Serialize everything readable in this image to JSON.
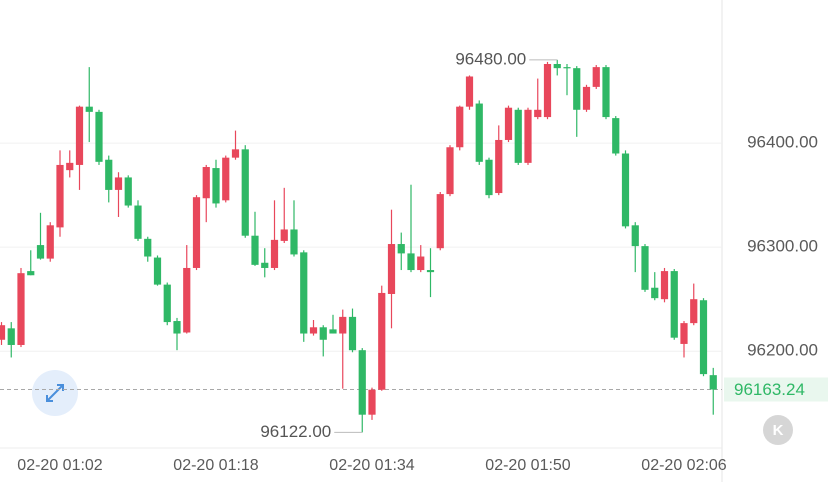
{
  "chart_data": {
    "type": "candlestick",
    "categories": [
      null,
      null,
      null,
      null,
      null,
      null,
      "02-20 01:02",
      null,
      null,
      null,
      null,
      null,
      null,
      null,
      null,
      null,
      null,
      null,
      null,
      null,
      null,
      null,
      "02-20 01:18",
      null,
      null,
      null,
      null,
      null,
      null,
      null,
      null,
      null,
      null,
      null,
      null,
      null,
      null,
      null,
      "02-20 01:34",
      null,
      null,
      null,
      null,
      null,
      null,
      null,
      null,
      null,
      null,
      null,
      null,
      null,
      null,
      null,
      "02-20 01:50",
      null,
      null,
      null,
      null,
      null,
      null,
      null,
      null,
      null,
      null,
      null,
      null,
      null,
      null,
      null,
      "02-20 02:06",
      null,
      null,
      null
    ],
    "open": [
      96211,
      96222,
      96206,
      96277,
      96302,
      96289,
      96319,
      96374,
      96379,
      96435,
      96430,
      96384,
      96355,
      96367,
      96340,
      96308,
      96290,
      96264,
      96229,
      96218,
      96280,
      96347,
      96376,
      96345,
      96386,
      96394,
      96311,
      96285,
      96280,
      96306,
      96317,
      96295,
      96217,
      96223,
      96221,
      96217,
      96233,
      96201,
      96139,
      96163,
      96255,
      96303,
      96294,
      96278,
      96278,
      96299,
      96351,
      96396,
      96435,
      96438,
      96384,
      96352,
      96403,
      96432,
      96381,
      96425,
      96425,
      96476,
      96473,
      96472,
      96432,
      96454,
      96473,
      96424,
      96390,
      96321,
      96301,
      96261,
      96250,
      96277,
      96207,
      96227,
      96249,
      96177
    ],
    "high": [
      96228,
      96228,
      96280,
      96297,
      96333,
      96324,
      96393,
      96393,
      96436,
      96473,
      96432,
      96388,
      96372,
      96369,
      96345,
      96310,
      96292,
      96266,
      96232,
      96302,
      96350,
      96379,
      96384,
      96388,
      96412,
      96398,
      96334,
      96299,
      96345,
      96357,
      96345,
      96297,
      96230,
      96225,
      96235,
      96240,
      96241,
      96203,
      96165,
      96263,
      96336,
      96314,
      96360,
      96302,
      96299,
      96353,
      96398,
      96436,
      96465,
      96441,
      96386,
      96417,
      96436,
      96434,
      96434,
      96462,
      96478,
      96480,
      96476,
      96474,
      96456,
      96475,
      96475,
      96426,
      96393,
      96324,
      96303,
      96276,
      96280,
      96279,
      96229,
      96265,
      96251,
      96184
    ],
    "low": [
      96206,
      96194,
      96204,
      96273,
      96288,
      96286,
      96310,
      96367,
      96355,
      96401,
      96379,
      96343,
      96329,
      96338,
      96306,
      96286,
      96263,
      96225,
      96201,
      96217,
      96278,
      96324,
      96338,
      96343,
      96384,
      96309,
      96282,
      96271,
      96278,
      96304,
      96291,
      96209,
      96215,
      96195,
      96217,
      96164,
      96199,
      96122,
      96134,
      96162,
      96222,
      96278,
      96276,
      96276,
      96252,
      96297,
      96349,
      96393,
      96432,
      96379,
      96347,
      96350,
      96401,
      96379,
      96379,
      96423,
      96423,
      96465,
      96446,
      96406,
      96430,
      96452,
      96423,
      96388,
      96318,
      96276,
      96257,
      96249,
      96247,
      96211,
      96194,
      96225,
      96176,
      96139
    ],
    "close": [
      96225,
      96206,
      96275,
      96273,
      96289,
      96321,
      96379,
      96381,
      96435,
      96430,
      96382,
      96355,
      96367,
      96340,
      96308,
      96291,
      96264,
      96228,
      96217,
      96280,
      96348,
      96377,
      96342,
      96386,
      96394,
      96311,
      96283,
      96280,
      96307,
      96317,
      96293,
      96217,
      96223,
      96211,
      96217,
      96233,
      96201,
      96139,
      96163,
      96256,
      96303,
      96294,
      96278,
      96291,
      96276,
      96351,
      96396,
      96435,
      96464,
      96382,
      96350,
      96403,
      96434,
      96381,
      96432,
      96432,
      96476,
      96472,
      96472,
      96432,
      96454,
      96473,
      96425,
      96390,
      96320,
      96301,
      96259,
      96251,
      96277,
      96213,
      96227,
      96250,
      96178,
      96163.24
    ],
    "up_color": "#e8475b",
    "down_color": "#2fb866",
    "ylim": [
      96107,
      96537.5
    ],
    "yticks": [
      {
        "value": 96200,
        "label": "96200.00"
      },
      {
        "value": 96300,
        "label": "96300.00"
      },
      {
        "value": 96400,
        "label": "96400.00"
      }
    ],
    "grid": true,
    "max_label": {
      "value": 96480,
      "label": "96480.00"
    },
    "min_label": {
      "value": 96122,
      "label": "96122.00"
    },
    "last_price": {
      "value": 96163.24,
      "label": "96163.24"
    }
  },
  "ui": {
    "logo_text": "K"
  }
}
